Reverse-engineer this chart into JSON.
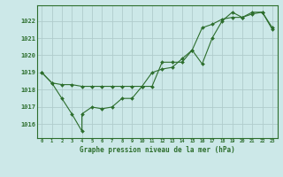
{
  "title": "Graphe pression niveau de la mer (hPa)",
  "bg_color": "#cce8e8",
  "grid_color": "#b0cccc",
  "line_color": "#2d6e2d",
  "markersize": 2.0,
  "ylabel_ticks": [
    1016,
    1017,
    1018,
    1019,
    1020,
    1021,
    1022
  ],
  "xlim": [
    -0.5,
    23.5
  ],
  "ylim": [
    1015.2,
    1022.9
  ],
  "series1_x": [
    0,
    1,
    2,
    3,
    4,
    4,
    5,
    6,
    7,
    8,
    9,
    10,
    11,
    12,
    13,
    14,
    15,
    16,
    17,
    18,
    19,
    20,
    21,
    22,
    23
  ],
  "series1_y": [
    1019.0,
    1018.4,
    1017.5,
    1016.6,
    1015.6,
    1016.6,
    1017.0,
    1016.9,
    1017.0,
    1017.5,
    1017.5,
    1018.2,
    1018.2,
    1019.6,
    1019.6,
    1019.6,
    1020.3,
    1019.5,
    1021.0,
    1022.0,
    1022.5,
    1022.2,
    1022.5,
    1022.5,
    1021.5
  ],
  "series2_x": [
    0,
    1,
    2,
    3,
    4,
    5,
    6,
    7,
    8,
    9,
    10,
    11,
    12,
    13,
    14,
    15,
    16,
    17,
    18,
    19,
    20,
    21,
    22,
    23
  ],
  "series2_y": [
    1019.0,
    1018.4,
    1018.3,
    1018.3,
    1018.2,
    1018.2,
    1018.2,
    1018.2,
    1018.2,
    1018.2,
    1018.2,
    1019.0,
    1019.2,
    1019.3,
    1019.8,
    1020.3,
    1021.6,
    1021.8,
    1022.1,
    1022.2,
    1022.2,
    1022.4,
    1022.5,
    1021.6
  ]
}
